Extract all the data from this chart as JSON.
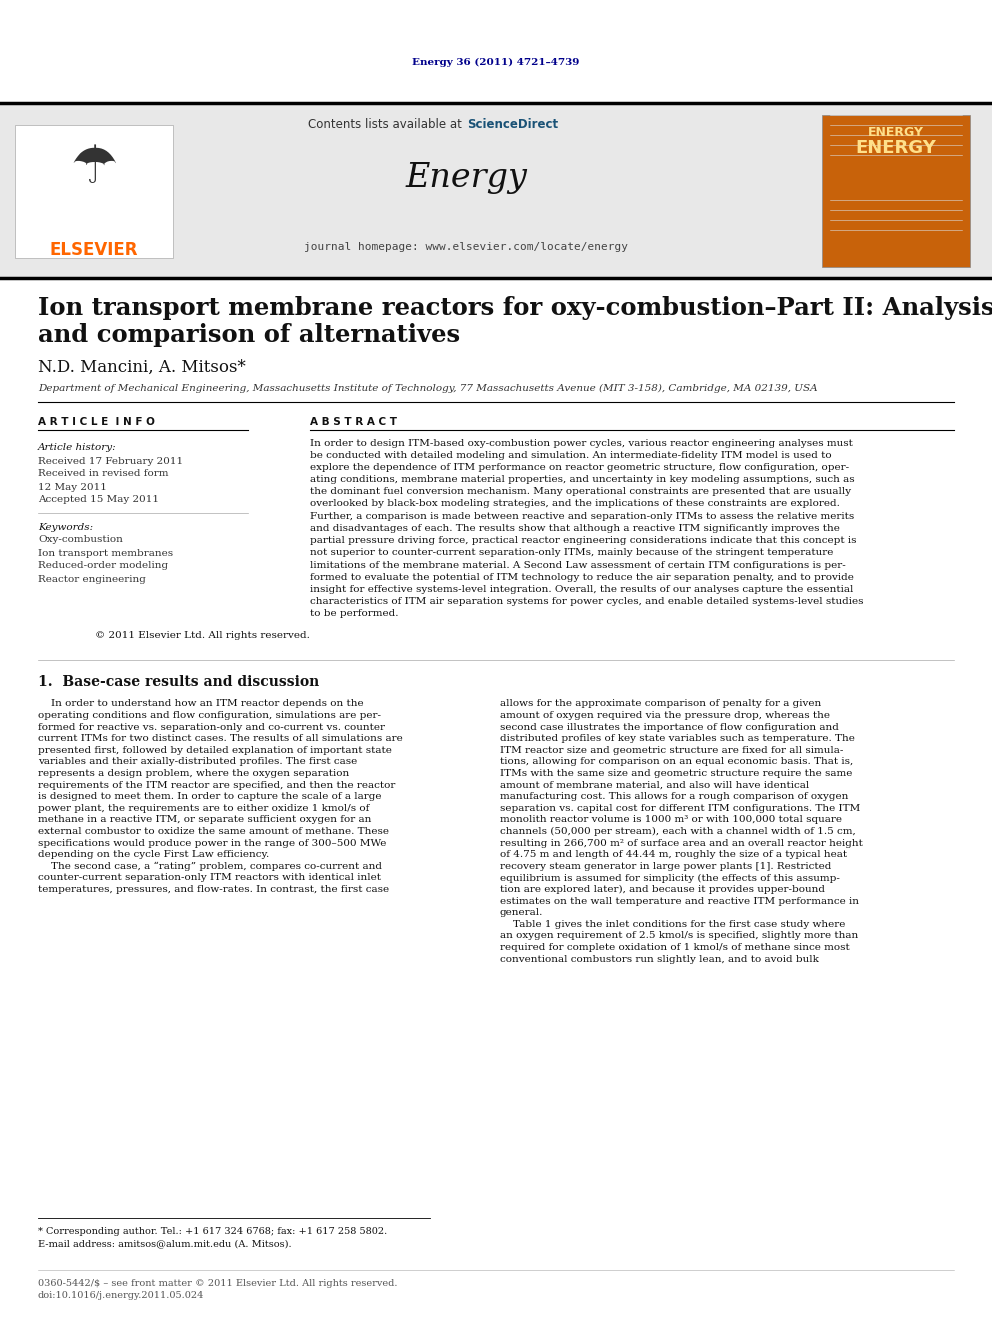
{
  "page_bg": "#ffffff",
  "top_journal_ref": "Energy 36 (2011) 4721–4739",
  "top_journal_ref_color": "#00008B",
  "header_bg": "#e8e8e8",
  "header_sciencedirect_color": "#1a5276",
  "header_journal_name": "Energy",
  "header_homepage": "journal homepage: www.elsevier.com/locate/energy",
  "elsevier_color": "#FF6600",
  "paper_title_line1": "Ion transport membrane reactors for oxy-combustion–Part II: Analysis",
  "paper_title_line2": "and comparison of alternatives",
  "authors": "N.D. Mancini, A. Mitsos*",
  "affiliation": "Department of Mechanical Engineering, Massachusetts Institute of Technology, 77 Massachusetts Avenue (MIT 3-158), Cambridge, MA 02139, USA",
  "article_info_label": "A R T I C L E  I N F O",
  "abstract_label": "A B S T R A C T",
  "article_history_label": "Article history:",
  "received_text": "Received 17 February 2011",
  "received_revised_text": "Received in revised form",
  "received_revised_date": "12 May 2011",
  "accepted_text": "Accepted 15 May 2011",
  "keywords_label": "Keywords:",
  "keyword1": "Oxy-combustion",
  "keyword2": "Ion transport membranes",
  "keyword3": "Reduced-order modeling",
  "keyword4": "Reactor engineering",
  "copyright_text": "© 2011 Elsevier Ltd. All rights reserved.",
  "section_title": "1.  Base-case results and discussion",
  "footnote_star": "* Corresponding author. Tel.: +1 617 324 6768; fax: +1 617 258 5802.",
  "footnote_email": "E-mail address: amitsos@alum.mit.edu (A. Mitsos).",
  "footer_issn": "0360-5442/$ – see front matter © 2011 Elsevier Ltd. All rights reserved.",
  "footer_doi": "doi:10.1016/j.energy.2011.05.024",
  "abstract_lines": [
    "In order to design ITM-based oxy-combustion power cycles, various reactor engineering analyses must",
    "be conducted with detailed modeling and simulation. An intermediate-fidelity ITM model is used to",
    "explore the dependence of ITM performance on reactor geometric structure, flow configuration, oper-",
    "ating conditions, membrane material properties, and uncertainty in key modeling assumptions, such as",
    "the dominant fuel conversion mechanism. Many operational constraints are presented that are usually",
    "overlooked by black-box modeling strategies, and the implications of these constraints are explored.",
    "Further, a comparison is made between reactive and separation-only ITMs to assess the relative merits",
    "and disadvantages of each. The results show that although a reactive ITM significantly improves the",
    "partial pressure driving force, practical reactor engineering considerations indicate that this concept is",
    "not superior to counter-current separation-only ITMs, mainly because of the stringent temperature",
    "limitations of the membrane material. A Second Law assessment of certain ITM configurations is per-",
    "formed to evaluate the potential of ITM technology to reduce the air separation penalty, and to provide",
    "insight for effective systems-level integration. Overall, the results of our analyses capture the essential",
    "characteristics of ITM air separation systems for power cycles, and enable detailed systems-level studies",
    "to be performed."
  ],
  "col1_lines": [
    "    In order to understand how an ITM reactor depends on the",
    "operating conditions and flow configuration, simulations are per-",
    "formed for reactive vs. separation-only and co-current vs. counter",
    "current ITMs for two distinct cases. The results of all simulations are",
    "presented first, followed by detailed explanation of important state",
    "variables and their axially-distributed profiles. The first case",
    "represents a design problem, where the oxygen separation",
    "requirements of the ITM reactor are specified, and then the reactor",
    "is designed to meet them. In order to capture the scale of a large",
    "power plant, the requirements are to either oxidize 1 kmol/s of",
    "methane in a reactive ITM, or separate sufficient oxygen for an",
    "external combustor to oxidize the same amount of methane. These",
    "specifications would produce power in the range of 300–500 MWe",
    "depending on the cycle First Law efficiency.",
    "    The second case, a “rating” problem, compares co-current and",
    "counter-current separation-only ITM reactors with identical inlet",
    "temperatures, pressures, and flow-rates. In contrast, the first case"
  ],
  "col2_lines": [
    "allows for the approximate comparison of penalty for a given",
    "amount of oxygen required via the pressure drop, whereas the",
    "second case illustrates the importance of flow configuration and",
    "distributed profiles of key state variables such as temperature. The",
    "ITM reactor size and geometric structure are fixed for all simula-",
    "tions, allowing for comparison on an equal economic basis. That is,",
    "ITMs with the same size and geometric structure require the same",
    "amount of membrane material, and also will have identical",
    "manufacturing cost. This allows for a rough comparison of oxygen",
    "separation vs. capital cost for different ITM configurations. The ITM",
    "monolith reactor volume is 1000 m³ or with 100,000 total square",
    "channels (50,000 per stream), each with a channel width of 1.5 cm,",
    "resulting in 266,700 m² of surface area and an overall reactor height",
    "of 4.75 m and length of 44.44 m, roughly the size of a typical heat",
    "recovery steam generator in large power plants [1]. Restricted",
    "equilibrium is assumed for simplicity (the effects of this assump-",
    "tion are explored later), and because it provides upper-bound",
    "estimates on the wall temperature and reactive ITM performance in",
    "general.",
    "    Table 1 gives the inlet conditions for the first case study where",
    "an oxygen requirement of 2.5 kmol/s is specified, slightly more than",
    "required for complete oxidation of 1 kmol/s of methane since most",
    "conventional combustors run slightly lean, and to avoid bulk"
  ]
}
